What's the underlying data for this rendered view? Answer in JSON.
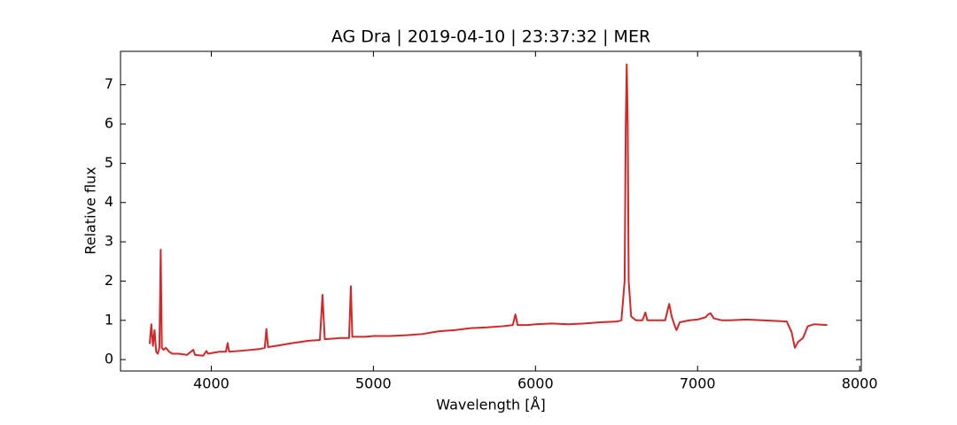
{
  "chart_data": {
    "type": "line",
    "title": "AG Dra | 2019-04-10 | 23:37:32 | MER",
    "x_label": "Wavelength [Å]",
    "y_label": "Relative flux",
    "xlim": [
      3440,
      8010
    ],
    "ylim": [
      -0.29,
      7.85
    ],
    "xticks": [
      4000,
      5000,
      6000,
      7000,
      8000
    ],
    "yticks": [
      0,
      1,
      2,
      3,
      4,
      5,
      6,
      7
    ],
    "series": [
      {
        "color": "#d62728",
        "x": [
          3620,
          3630,
          3640,
          3650,
          3660,
          3670,
          3680,
          3688,
          3695,
          3705,
          3720,
          3740,
          3760,
          3800,
          3850,
          3889,
          3900,
          3950,
          3970,
          3980,
          4050,
          4090,
          4101,
          4110,
          4200,
          4300,
          4330,
          4340,
          4350,
          4400,
          4500,
          4600,
          4670,
          4686,
          4700,
          4800,
          4850,
          4861,
          4870,
          4950,
          5000,
          5100,
          5200,
          5300,
          5400,
          5500,
          5600,
          5700,
          5800,
          5860,
          5876,
          5890,
          5950,
          6000,
          6100,
          6200,
          6300,
          6400,
          6500,
          6530,
          6550,
          6557,
          6563,
          6569,
          6575,
          6590,
          6620,
          6660,
          6678,
          6690,
          6750,
          6800,
          6825,
          6840,
          6860,
          6870,
          6890,
          6950,
          7000,
          7050,
          7065,
          7080,
          7100,
          7150,
          7200,
          7300,
          7400,
          7500,
          7550,
          7580,
          7600,
          7620,
          7650,
          7680,
          7720,
          7800
        ],
        "values": [
          0.4,
          0.9,
          0.35,
          0.75,
          0.2,
          0.15,
          0.3,
          2.8,
          0.3,
          0.25,
          0.3,
          0.2,
          0.15,
          0.15,
          0.12,
          0.25,
          0.12,
          0.1,
          0.22,
          0.15,
          0.2,
          0.2,
          0.42,
          0.2,
          0.23,
          0.27,
          0.3,
          0.78,
          0.32,
          0.35,
          0.42,
          0.48,
          0.5,
          1.65,
          0.52,
          0.55,
          0.55,
          1.87,
          0.58,
          0.58,
          0.6,
          0.6,
          0.62,
          0.65,
          0.72,
          0.75,
          0.8,
          0.82,
          0.85,
          0.88,
          1.15,
          0.88,
          0.88,
          0.9,
          0.92,
          0.9,
          0.92,
          0.95,
          0.97,
          1.0,
          2.0,
          6.0,
          7.52,
          6.0,
          2.0,
          1.1,
          1.0,
          1.0,
          1.2,
          1.0,
          1.0,
          1.0,
          1.42,
          1.1,
          0.85,
          0.75,
          0.95,
          1.0,
          1.02,
          1.08,
          1.15,
          1.18,
          1.05,
          1.0,
          1.0,
          1.02,
          1.0,
          0.98,
          0.97,
          0.7,
          0.3,
          0.45,
          0.55,
          0.85,
          0.9,
          0.88
        ]
      }
    ]
  }
}
